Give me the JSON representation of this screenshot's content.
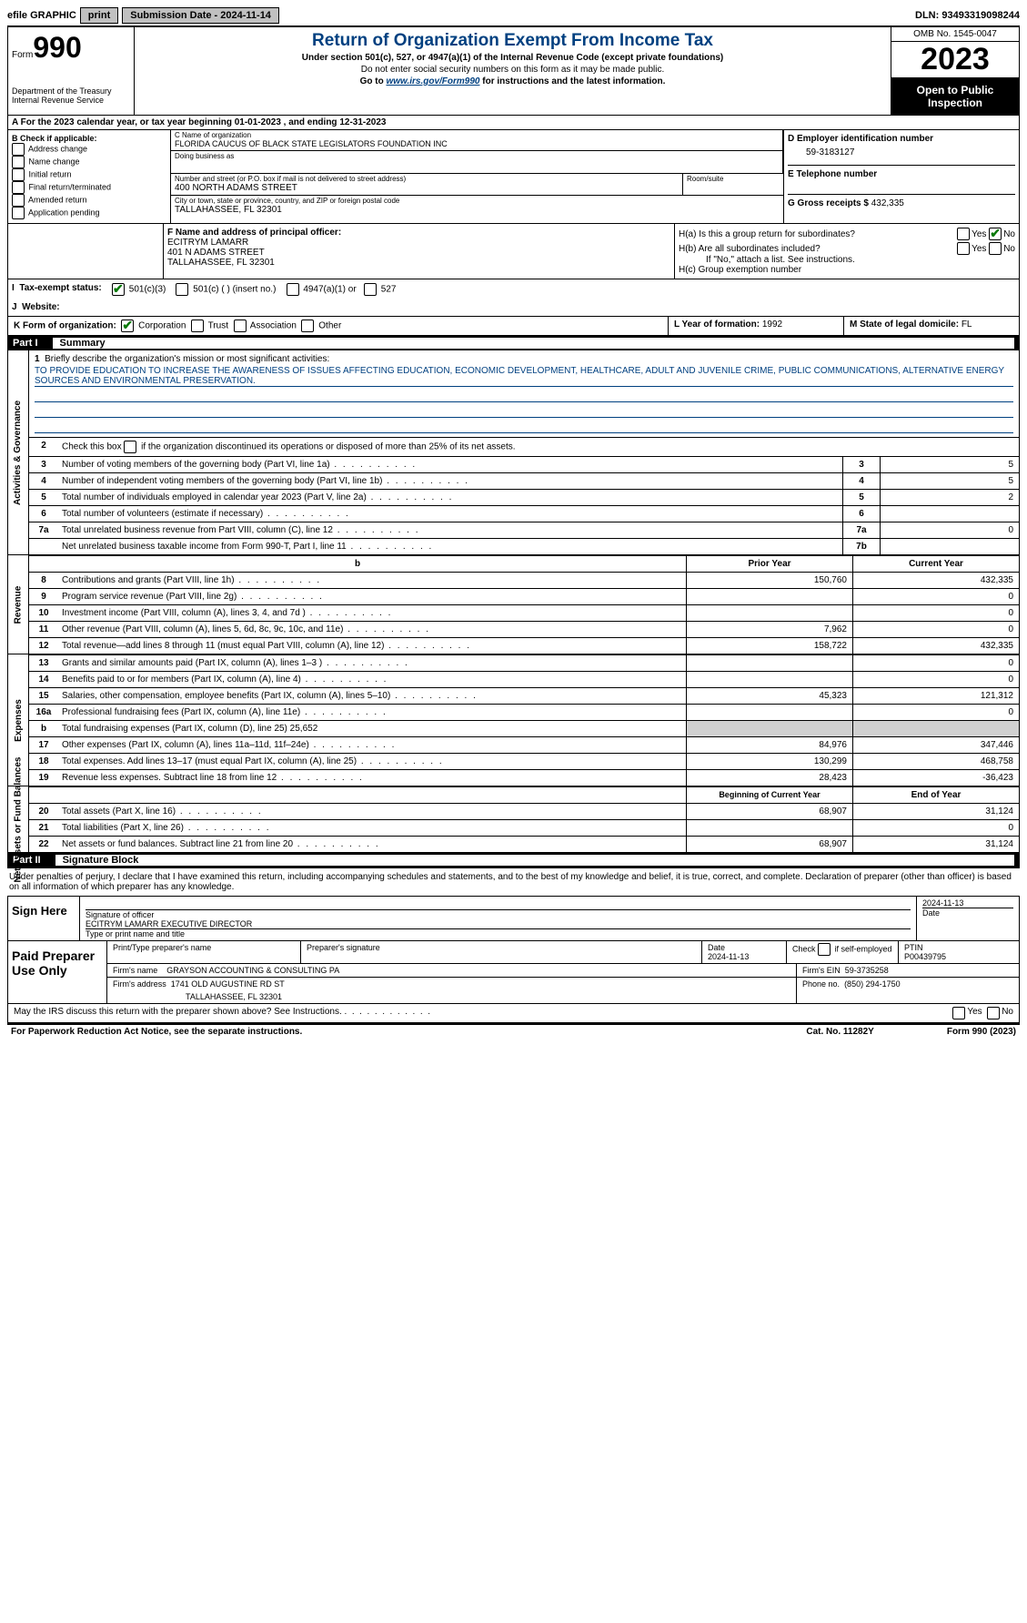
{
  "topbar": {
    "efile_label": "efile GRAPHIC",
    "print_btn": "print",
    "submission_label": "Submission Date - 2024-11-14",
    "dln": "DLN: 93493319098244"
  },
  "header": {
    "form_word": "Form",
    "form_number": "990",
    "dept": "Department of the Treasury",
    "irs": "Internal Revenue Service",
    "title": "Return of Organization Exempt From Income Tax",
    "sub1": "Under section 501(c), 527, or 4947(a)(1) of the Internal Revenue Code (except private foundations)",
    "sub2": "Do not enter social security numbers on this form as it may be made public.",
    "sub3_pre": "Go to ",
    "sub3_link": "www.irs.gov/Form990",
    "sub3_post": " for instructions and the latest information.",
    "omb": "OMB No. 1545-0047",
    "year": "2023",
    "open": "Open to Public Inspection"
  },
  "period": {
    "line": "A For the 2023 calendar year, or tax year beginning 01-01-2023   , and ending 12-31-2023"
  },
  "boxB": {
    "label": "B Check if applicable:",
    "opts": [
      "Address change",
      "Name change",
      "Initial return",
      "Final return/terminated",
      "Amended return",
      "Application pending"
    ]
  },
  "boxC": {
    "name_lbl": "C Name of organization",
    "name": "FLORIDA CAUCUS OF BLACK STATE LEGISLATORS FOUNDATION INC",
    "dba_lbl": "Doing business as",
    "dba": "",
    "street_lbl": "Number and street (or P.O. box if mail is not delivered to street address)",
    "street": "400 NORTH ADAMS STREET",
    "suite_lbl": "Room/suite",
    "suite": "",
    "city_lbl": "City or town, state or province, country, and ZIP or foreign postal code",
    "city": "TALLAHASSEE, FL  32301"
  },
  "boxD": {
    "lbl": "D Employer identification number",
    "val": "59-3183127"
  },
  "boxE": {
    "lbl": "E Telephone number",
    "val": ""
  },
  "boxG": {
    "lbl": "G Gross receipts $",
    "val": "432,335"
  },
  "boxF": {
    "lbl": "F  Name and address of principal officer:",
    "name": "ECITRYM LAMARR",
    "addr1": "401 N ADAMS STREET",
    "addr2": "TALLAHASSEE, FL  32301"
  },
  "boxH": {
    "a": "H(a)  Is this a group return for subordinates?",
    "b": "H(b)  Are all subordinates included?",
    "b2": "If \"No,\" attach a list. See instructions.",
    "c": "H(c)  Group exemption number",
    "yes": "Yes",
    "no": "No"
  },
  "boxI": {
    "lbl": "Tax-exempt status:",
    "o1": "501(c)(3)",
    "o2": "501(c) (  ) (insert no.)",
    "o3": "4947(a)(1) or",
    "o4": "527"
  },
  "boxJ": {
    "lbl": "Website:",
    "val": ""
  },
  "boxK": {
    "lbl": "K Form of organization:",
    "o1": "Corporation",
    "o2": "Trust",
    "o3": "Association",
    "o4": "Other"
  },
  "boxL": {
    "lbl": "L Year of formation:",
    "val": "1992"
  },
  "boxM": {
    "lbl": "M State of legal domicile:",
    "val": "FL"
  },
  "part1": {
    "label": "Part I",
    "title": "Summary",
    "tabs": {
      "ag": "Activities & Governance",
      "rev": "Revenue",
      "exp": "Expenses",
      "na": "Net Assets or Fund Balances"
    },
    "l1_lbl": "Briefly describe the organization's mission or most significant activities:",
    "l1_text": "TO PROVIDE EDUCATION TO INCREASE THE AWARENESS OF ISSUES AFFECTING EDUCATION, ECONOMIC DEVELOPMENT, HEALTHCARE, ADULT AND JUVENILE CRIME, PUBLIC COMMUNICATIONS, ALTERNATIVE ENERGY SOURCES AND ENVIRONMENTAL PRESERVATION.",
    "l2": "Check this box      if the organization discontinued its operations or disposed of more than 25% of its net assets.",
    "l3": "Number of voting members of the governing body (Part VI, line 1a)",
    "l4": "Number of independent voting members of the governing body (Part VI, line 1b)",
    "l5": "Total number of individuals employed in calendar year 2023 (Part V, line 2a)",
    "l6": "Total number of volunteers (estimate if necessary)",
    "l7a": "Total unrelated business revenue from Part VIII, column (C), line 12",
    "l7b": "Net unrelated business taxable income from Form 990-T, Part I, line 11",
    "v3": "5",
    "v4": "5",
    "v5": "2",
    "v6": "",
    "v7a": "0",
    "v7b": "",
    "hdr_py": "Prior Year",
    "hdr_cy": "Current Year",
    "rows_rev": [
      {
        "n": "8",
        "t": "Contributions and grants (Part VIII, line 1h)",
        "py": "150,760",
        "cy": "432,335"
      },
      {
        "n": "9",
        "t": "Program service revenue (Part VIII, line 2g)",
        "py": "",
        "cy": "0"
      },
      {
        "n": "10",
        "t": "Investment income (Part VIII, column (A), lines 3, 4, and 7d )",
        "py": "",
        "cy": "0"
      },
      {
        "n": "11",
        "t": "Other revenue (Part VIII, column (A), lines 5, 6d, 8c, 9c, 10c, and 11e)",
        "py": "7,962",
        "cy": "0"
      },
      {
        "n": "12",
        "t": "Total revenue—add lines 8 through 11 (must equal Part VIII, column (A), line 12)",
        "py": "158,722",
        "cy": "432,335"
      }
    ],
    "rows_exp": [
      {
        "n": "13",
        "t": "Grants and similar amounts paid (Part IX, column (A), lines 1–3 )",
        "py": "",
        "cy": "0"
      },
      {
        "n": "14",
        "t": "Benefits paid to or for members (Part IX, column (A), line 4)",
        "py": "",
        "cy": "0"
      },
      {
        "n": "15",
        "t": "Salaries, other compensation, employee benefits (Part IX, column (A), lines 5–10)",
        "py": "45,323",
        "cy": "121,312"
      },
      {
        "n": "16a",
        "t": "Professional fundraising fees (Part IX, column (A), line 11e)",
        "py": "",
        "cy": "0"
      },
      {
        "n": "b",
        "t": "Total fundraising expenses (Part IX, column (D), line 25) 25,652",
        "grey": true
      },
      {
        "n": "17",
        "t": "Other expenses (Part IX, column (A), lines 11a–11d, 11f–24e)",
        "py": "84,976",
        "cy": "347,446"
      },
      {
        "n": "18",
        "t": "Total expenses. Add lines 13–17 (must equal Part IX, column (A), line 25)",
        "py": "130,299",
        "cy": "468,758"
      },
      {
        "n": "19",
        "t": "Revenue less expenses. Subtract line 18 from line 12",
        "py": "28,423",
        "cy": "-36,423"
      }
    ],
    "hdr_bcy": "Beginning of Current Year",
    "hdr_eoy": "End of Year",
    "rows_na": [
      {
        "n": "20",
        "t": "Total assets (Part X, line 16)",
        "py": "68,907",
        "cy": "31,124"
      },
      {
        "n": "21",
        "t": "Total liabilities (Part X, line 26)",
        "py": "",
        "cy": "0"
      },
      {
        "n": "22",
        "t": "Net assets or fund balances. Subtract line 21 from line 20",
        "py": "68,907",
        "cy": "31,124"
      }
    ]
  },
  "part2": {
    "label": "Part II",
    "title": "Signature Block",
    "para": "Under penalties of perjury, I declare that I have examined this return, including accompanying schedules and statements, and to the best of my knowledge and belief, it is true, correct, and complete. Declaration of preparer (other than officer) is based on all information of which preparer has any knowledge.",
    "sign_here": "Sign Here",
    "sig_officer_lbl": "Signature of officer",
    "sig_date": "2024-11-13",
    "officer_name": "ECITRYM LAMARR  EXECUTIVE DIRECTOR",
    "officer_type_lbl": "Type or print name and title",
    "date_lbl": "Date",
    "paid_lbl": "Paid Preparer Use Only",
    "prep_name_lbl": "Print/Type preparer's name",
    "prep_sig_lbl": "Preparer's signature",
    "prep_date": "2024-11-13",
    "self_emp": "Check      if self-employed",
    "ptin_lbl": "PTIN",
    "ptin": "P00439795",
    "firm_name_lbl": "Firm's name",
    "firm_name": "GRAYSON ACCOUNTING & CONSULTING PA",
    "firm_ein_lbl": "Firm's EIN",
    "firm_ein": "59-3735258",
    "firm_addr_lbl": "Firm's address",
    "firm_addr": "1741 OLD AUGUSTINE RD ST",
    "firm_city": "TALLAHASSEE, FL  32301",
    "phone_lbl": "Phone no.",
    "phone": "(850) 294-1750",
    "irs_discuss": "May the IRS discuss this return with the preparer shown above? See Instructions."
  },
  "footer": {
    "pra": "For Paperwork Reduction Act Notice, see the separate instructions.",
    "cat": "Cat. No. 11282Y",
    "form": "Form 990 (2023)"
  }
}
